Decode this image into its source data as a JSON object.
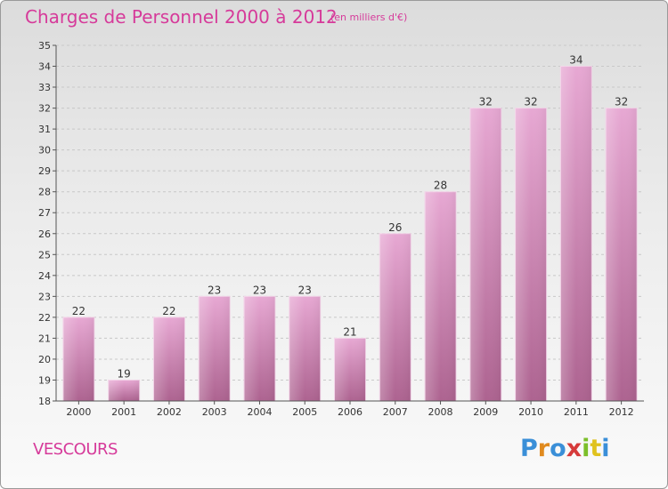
{
  "header": {
    "title": "Charges de Personnel 2000 à 2012",
    "subtitle": "(en milliers d'€)"
  },
  "footer": {
    "commune": "VESCOURS",
    "logo_text": "Proxiti"
  },
  "colors": {
    "accent": "#d63a9a",
    "bar_top": "#e6a6d2",
    "bar_bottom": "#b0658f"
  },
  "chart_data": {
    "type": "bar",
    "title": "Charges de Personnel 2000 à 2012",
    "subtitle": "(en milliers d'€)",
    "categories": [
      "2000",
      "2001",
      "2002",
      "2003",
      "2004",
      "2005",
      "2006",
      "2007",
      "2008",
      "2009",
      "2010",
      "2011",
      "2012"
    ],
    "values": [
      22,
      19,
      22,
      23,
      23,
      23,
      21,
      26,
      28,
      32,
      32,
      34,
      32
    ],
    "ylim": [
      18,
      35
    ],
    "yticks": [
      18,
      19,
      20,
      21,
      22,
      23,
      24,
      25,
      26,
      27,
      28,
      29,
      30,
      31,
      32,
      33,
      34,
      35
    ],
    "grid": true,
    "data_labels": true
  }
}
